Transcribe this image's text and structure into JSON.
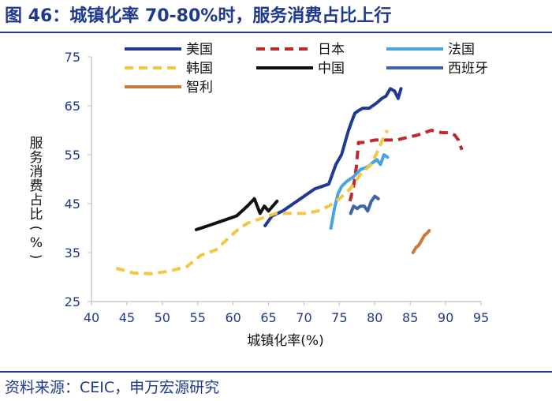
{
  "figure": {
    "title": "图 46：城镇化率 70-80%时，服务消费占比上行",
    "source": "资料来源：CEIC，申万宏源研究"
  },
  "chart_data": {
    "type": "line",
    "xlabel": "城镇化率(%)",
    "ylabel": "服务消费占比(%)",
    "xlim": [
      40,
      95
    ],
    "ylim": [
      25,
      75
    ],
    "xticks": [
      40,
      45,
      50,
      55,
      60,
      65,
      70,
      75,
      80,
      85,
      90,
      95
    ],
    "yticks": [
      25,
      35,
      45,
      55,
      65,
      75
    ],
    "grid": false,
    "legend_position": "top",
    "series": [
      {
        "name": "美国",
        "color": "#1f3a93",
        "dash": "solid",
        "x": [
          64.5,
          65.5,
          67,
          68.5,
          70,
          71.5,
          72.5,
          73.5,
          74.5,
          75.3,
          75.8,
          76.3,
          76.8,
          77.2,
          77.7,
          78.3,
          79.2,
          80.2,
          81.0,
          81.6,
          82.2,
          82.8,
          83.3,
          83.7
        ],
        "y": [
          40.5,
          42.5,
          43.5,
          45,
          46.5,
          48,
          48.5,
          49,
          53,
          55,
          57.5,
          60,
          62,
          63.5,
          64,
          64.5,
          64.5,
          65.5,
          66.5,
          67,
          68.5,
          68,
          66.5,
          68.5
        ]
      },
      {
        "name": "日本",
        "color": "#c0282d",
        "dash": "dashed",
        "x": [
          76.5,
          77.0,
          77.4,
          77.7,
          78.3,
          80.0,
          83.0,
          86.0,
          88.0,
          89.5,
          90.5,
          91.3,
          91.8,
          92.3
        ],
        "y": [
          45.5,
          48.5,
          52.5,
          57.5,
          57.5,
          58.0,
          58.0,
          59.0,
          60.0,
          59.5,
          59.5,
          59.0,
          58.0,
          56.0
        ]
      },
      {
        "name": "法国",
        "color": "#4aa3df",
        "dash": "solid",
        "x": [
          73.8,
          74.3,
          74.8,
          75.3,
          76.0,
          77.0,
          78.0,
          79.0,
          79.8,
          80.3,
          80.8,
          81.3,
          81.8
        ],
        "y": [
          40.0,
          44.0,
          47.0,
          48.5,
          49.5,
          50.5,
          52.0,
          52.5,
          53.5,
          54.0,
          53.0,
          55.0,
          54.5
        ]
      },
      {
        "name": "韩国",
        "color": "#f3c742",
        "dash": "dashed",
        "x": [
          43.5,
          46.0,
          48.5,
          51.0,
          53.5,
          55.5,
          57.5,
          59.0,
          60.5,
          62.0,
          64.0,
          66.0,
          68.0,
          70.0,
          72.0,
          73.5,
          75.0,
          76.5,
          78.0,
          79.5,
          80.5,
          81.2,
          81.8
        ],
        "y": [
          31.8,
          30.8,
          30.7,
          31.2,
          32.2,
          34.5,
          35.5,
          37.5,
          39.5,
          41.0,
          42.0,
          43.0,
          43.0,
          43.0,
          43.5,
          44.5,
          46.0,
          48.0,
          51.0,
          53.0,
          56.0,
          58.5,
          60.0
        ]
      },
      {
        "name": "中国",
        "color": "#111111",
        "dash": "solid",
        "x": [
          54.8,
          56.5,
          58.5,
          60.5,
          62.0,
          63.0,
          63.8,
          64.4,
          65.0,
          65.6,
          66.2
        ],
        "y": [
          39.7,
          40.5,
          41.5,
          42.5,
          44.5,
          46.0,
          43.0,
          44.5,
          43.5,
          44.5,
          45.5
        ]
      },
      {
        "name": "西班牙",
        "color": "#3e65a8",
        "dash": "solid",
        "x": [
          76.6,
          77.0,
          77.5,
          78.0,
          78.5,
          79.0,
          79.5,
          80.0,
          80.5
        ],
        "y": [
          43.0,
          44.5,
          44.0,
          44.5,
          44.5,
          43.5,
          45.5,
          46.5,
          46.0
        ]
      },
      {
        "name": "智利",
        "color": "#c87b3a",
        "dash": "solid",
        "x": [
          85.4,
          85.8,
          86.2,
          86.6,
          87.0,
          87.4,
          87.7
        ],
        "y": [
          35.0,
          36.0,
          36.5,
          37.5,
          38.5,
          39.0,
          39.5
        ]
      }
    ]
  }
}
